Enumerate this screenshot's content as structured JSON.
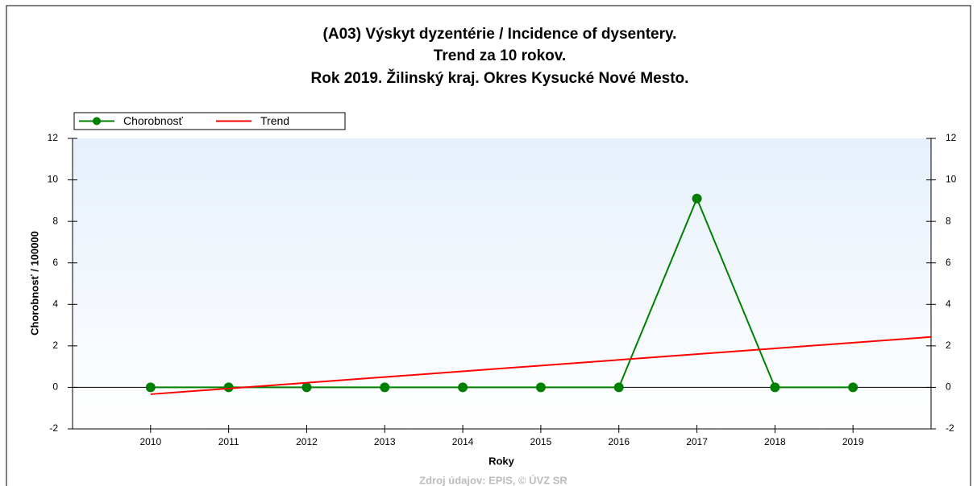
{
  "chart_data": {
    "type": "line",
    "title": [
      "(A03) Výskyt dyzentérie / Incidence of dysentery.",
      "Trend za 10 rokov.",
      "Rok 2019. Žilinský kraj. Okres Kysucké Nové Mesto."
    ],
    "x_label": "Roky",
    "y_label": "Chorobnosť / 100000",
    "source": "Zdroj údajov: EPIS, © ÚVZ SR",
    "x": [
      2010,
      2011,
      2012,
      2013,
      2014,
      2015,
      2016,
      2017,
      2018,
      2019
    ],
    "series": [
      {
        "name": "Chorobnosť",
        "color": "#008000",
        "values": [
          0,
          0,
          0,
          0,
          0,
          0,
          0,
          9.1,
          0,
          0
        ],
        "markers": true
      },
      {
        "name": "Trend",
        "color": "#ff0000",
        "x": [
          2010,
          2020
        ],
        "values": [
          -0.33,
          2.43
        ],
        "markers": false
      }
    ],
    "xlim": [
      2009,
      2020
    ],
    "xticks": [
      2010,
      2011,
      2012,
      2013,
      2014,
      2015,
      2016,
      2017,
      2018,
      2019
    ],
    "ylim": [
      -2,
      12
    ],
    "yticks": [
      -2,
      0,
      2,
      4,
      6,
      8,
      10,
      12
    ],
    "y2lim": [
      -2,
      12
    ],
    "y2ticks": [
      -2,
      0,
      2,
      4,
      6,
      8,
      10,
      12
    ],
    "legend": "top-left"
  }
}
